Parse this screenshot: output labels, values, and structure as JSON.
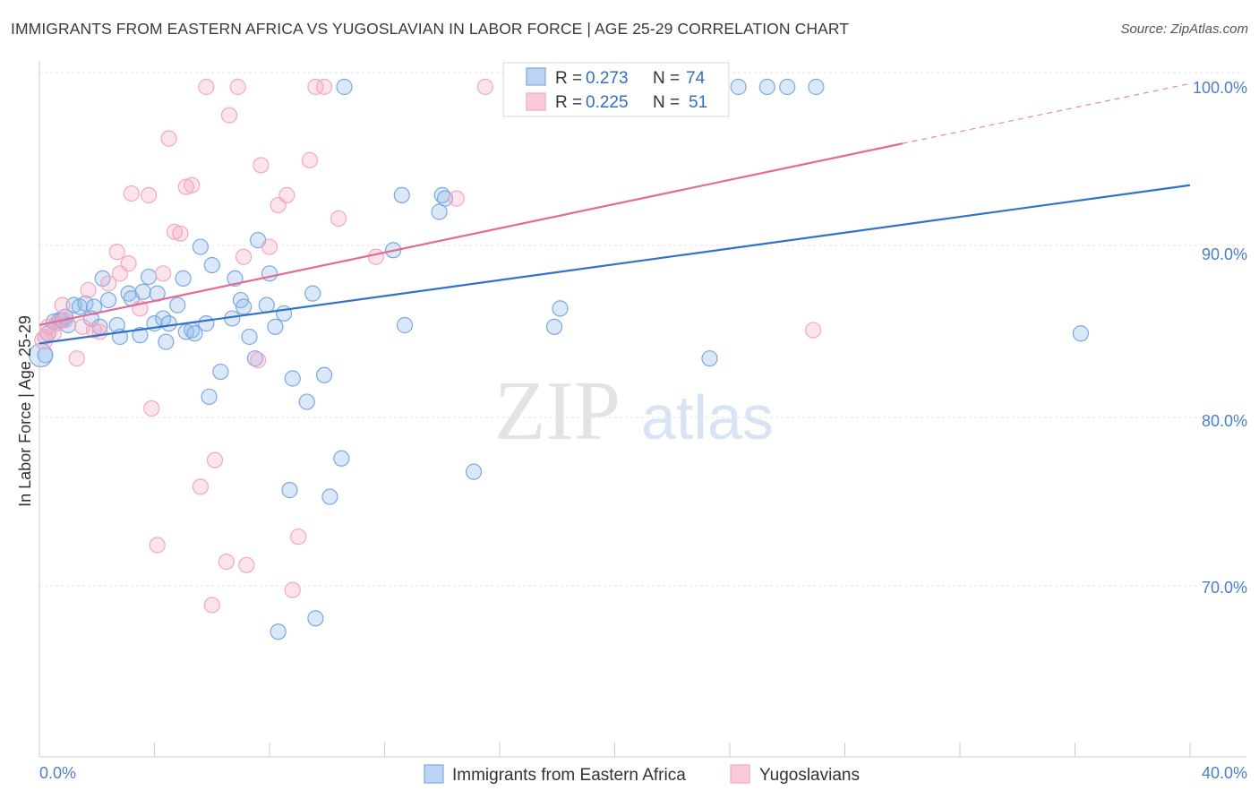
{
  "title": "IMMIGRANTS FROM EASTERN AFRICA VS YUGOSLAVIAN IN LABOR FORCE | AGE 25-29 CORRELATION CHART",
  "source": "Source: ZipAtlas.com",
  "watermark": {
    "zip": "ZIP",
    "atlas": "atlas"
  },
  "legend_top": [
    {
      "r_label": "R =",
      "r_value": "0.273",
      "n_label": "N =",
      "n_value": "74"
    },
    {
      "r_label": "R =",
      "r_value": "0.225",
      "n_label": "N =",
      "n_value": "51"
    }
  ],
  "chart_data": {
    "type": "scatter",
    "xlabel": "",
    "ylabel": "In Labor Force | Age 25-29",
    "xlim": [
      0,
      40
    ],
    "ylim": [
      60,
      100
    ],
    "x_tick_labels": [
      "0.0%",
      "40.0%"
    ],
    "y_ticks": [
      70,
      80,
      90,
      100
    ],
    "y_tick_labels": [
      "70.0%",
      "80.0%",
      "90.0%",
      "100.0%"
    ],
    "grid": true,
    "legend_position": "bottom",
    "series": [
      {
        "name": "Immigrants from Eastern Africa",
        "color": "#7aa8e6",
        "line_color": "#2f73c8",
        "trend": {
          "x": [
            0,
            40
          ],
          "y": [
            84.6,
            94.1
          ]
        },
        "points": [
          [
            0.2,
            83.9
          ],
          [
            0.3,
            85.2
          ],
          [
            0.5,
            85.9
          ],
          [
            0.6,
            85.8
          ],
          [
            0.7,
            86.0
          ],
          [
            0.8,
            86.0
          ],
          [
            1.0,
            85.7
          ],
          [
            1.2,
            86.9
          ],
          [
            1.4,
            86.8
          ],
          [
            1.6,
            87.0
          ],
          [
            1.8,
            86.1
          ],
          [
            2.2,
            88.5
          ],
          [
            2.4,
            87.2
          ],
          [
            2.7,
            85.7
          ],
          [
            2.8,
            85.0
          ],
          [
            3.1,
            87.6
          ],
          [
            3.2,
            87.3
          ],
          [
            3.5,
            85.1
          ],
          [
            3.6,
            87.7
          ],
          [
            3.8,
            88.6
          ],
          [
            4.0,
            85.8
          ],
          [
            4.1,
            87.6
          ],
          [
            4.3,
            86.1
          ],
          [
            4.4,
            84.7
          ],
          [
            4.5,
            85.8
          ],
          [
            4.8,
            86.9
          ],
          [
            5.0,
            88.5
          ],
          [
            5.1,
            85.3
          ],
          [
            5.3,
            85.4
          ],
          [
            5.4,
            85.2
          ],
          [
            5.6,
            90.4
          ],
          [
            5.8,
            85.8
          ],
          [
            5.9,
            81.4
          ],
          [
            6.0,
            89.3
          ],
          [
            6.3,
            82.9
          ],
          [
            6.7,
            86.1
          ],
          [
            6.8,
            88.5
          ],
          [
            7.0,
            87.2
          ],
          [
            7.1,
            86.8
          ],
          [
            7.3,
            85.0
          ],
          [
            7.5,
            83.7
          ],
          [
            7.6,
            90.8
          ],
          [
            7.9,
            86.9
          ],
          [
            8.0,
            88.8
          ],
          [
            8.2,
            85.6
          ],
          [
            8.3,
            67.3
          ],
          [
            8.5,
            86.4
          ],
          [
            8.7,
            75.8
          ],
          [
            8.8,
            82.5
          ],
          [
            9.3,
            81.1
          ],
          [
            9.5,
            87.6
          ],
          [
            9.6,
            68.1
          ],
          [
            9.9,
            82.7
          ],
          [
            10.1,
            75.4
          ],
          [
            10.5,
            77.7
          ],
          [
            10.6,
            100.0
          ],
          [
            12.3,
            90.2
          ],
          [
            12.6,
            93.5
          ],
          [
            12.7,
            85.7
          ],
          [
            13.9,
            92.5
          ],
          [
            14.0,
            93.5
          ],
          [
            14.1,
            93.3
          ],
          [
            15.1,
            76.9
          ],
          [
            17.9,
            85.6
          ],
          [
            18.1,
            86.7
          ],
          [
            23.3,
            83.7
          ],
          [
            25.3,
            100.0
          ],
          [
            24.3,
            100.0
          ],
          [
            26.0,
            100.0
          ],
          [
            27.0,
            100.0
          ],
          [
            36.2,
            85.2
          ],
          [
            0.9,
            86.2
          ],
          [
            1.9,
            86.8
          ],
          [
            2.1,
            85.6
          ]
        ]
      },
      {
        "name": "Yugoslavians",
        "color": "#f4a7bf",
        "line_color": "#e46a92",
        "trend": {
          "x": [
            0,
            30
          ],
          "y": [
            85.7,
            96.6
          ]
        },
        "trend_dashed": {
          "x": [
            30,
            40
          ],
          "y": [
            96.6,
            100.2
          ]
        },
        "points": [
          [
            0.2,
            85.0
          ],
          [
            0.3,
            85.6
          ],
          [
            0.5,
            85.2
          ],
          [
            0.6,
            85.8
          ],
          [
            0.8,
            86.9
          ],
          [
            0.9,
            86.0
          ],
          [
            1.3,
            83.7
          ],
          [
            1.5,
            85.6
          ],
          [
            1.7,
            87.8
          ],
          [
            1.9,
            85.4
          ],
          [
            2.1,
            85.3
          ],
          [
            2.4,
            88.2
          ],
          [
            2.7,
            90.1
          ],
          [
            2.8,
            88.8
          ],
          [
            3.1,
            89.4
          ],
          [
            3.2,
            93.6
          ],
          [
            3.5,
            86.7
          ],
          [
            3.8,
            93.5
          ],
          [
            3.9,
            80.7
          ],
          [
            4.1,
            72.5
          ],
          [
            4.3,
            88.8
          ],
          [
            4.5,
            96.9
          ],
          [
            4.7,
            91.3
          ],
          [
            4.9,
            91.2
          ],
          [
            5.1,
            94.0
          ],
          [
            5.3,
            94.1
          ],
          [
            5.6,
            76.0
          ],
          [
            5.8,
            100.0
          ],
          [
            6.0,
            68.9
          ],
          [
            6.1,
            77.6
          ],
          [
            6.5,
            71.5
          ],
          [
            6.6,
            98.3
          ],
          [
            6.9,
            100.0
          ],
          [
            7.1,
            89.8
          ],
          [
            7.2,
            71.3
          ],
          [
            7.6,
            83.6
          ],
          [
            7.7,
            95.3
          ],
          [
            8.0,
            90.4
          ],
          [
            8.3,
            92.9
          ],
          [
            8.6,
            93.5
          ],
          [
            8.8,
            69.8
          ],
          [
            9.0,
            73.0
          ],
          [
            9.4,
            95.6
          ],
          [
            9.6,
            100.0
          ],
          [
            9.9,
            100.0
          ],
          [
            10.4,
            92.1
          ],
          [
            11.7,
            89.8
          ],
          [
            14.5,
            93.3
          ],
          [
            15.5,
            100.0
          ],
          [
            23.3,
            100.0
          ],
          [
            26.9,
            85.4
          ]
        ]
      }
    ]
  }
}
